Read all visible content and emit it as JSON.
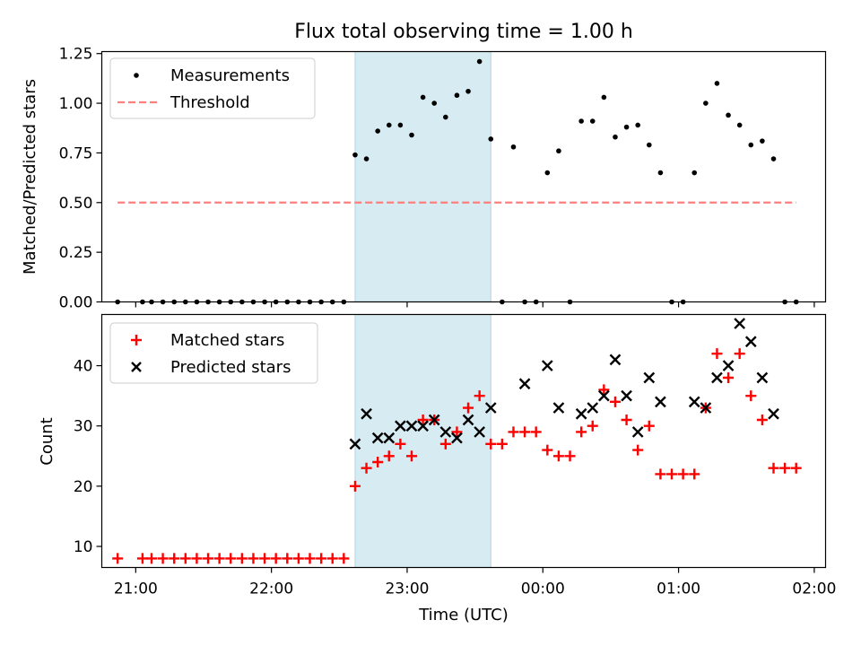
{
  "chart_data": [
    {
      "type": "scatter",
      "title": "Flux total observing time = 1.00 h",
      "xlabel": "",
      "ylabel": "Matched/Predicted stars",
      "xlim": [
        "20:45",
        "02:05"
      ],
      "ylim": [
        0,
        1.26
      ],
      "yticks": [
        "0.00",
        "0.25",
        "0.50",
        "0.75",
        "1.00",
        "1.25"
      ],
      "xticks": [
        "21:00",
        "22:00",
        "23:00",
        "00:00",
        "01:00",
        "02:00"
      ],
      "shaded_span": [
        "22:37",
        "23:37"
      ],
      "legend_position": "top-left",
      "series": [
        {
          "name": "Measurements",
          "marker": "dot",
          "color": "#000000",
          "x": [
            "20:52",
            "21:03",
            "21:07",
            "21:12",
            "21:17",
            "21:22",
            "21:27",
            "21:32",
            "21:37",
            "21:42",
            "21:47",
            "21:52",
            "21:57",
            "22:02",
            "22:07",
            "22:12",
            "22:17",
            "22:22",
            "22:27",
            "22:32",
            "22:37",
            "22:42",
            "22:47",
            "22:52",
            "22:57",
            "23:02",
            "23:07",
            "23:12",
            "23:17",
            "23:22",
            "23:27",
            "23:32",
            "23:37",
            "23:42",
            "23:47",
            "23:52",
            "23:57",
            "00:02",
            "00:07",
            "00:12",
            "00:17",
            "00:22",
            "00:27",
            "00:32",
            "00:37",
            "00:42",
            "00:47",
            "00:52",
            "00:57",
            "01:02",
            "01:07",
            "01:12",
            "01:17",
            "01:22",
            "01:27",
            "01:32",
            "01:37",
            "01:42",
            "01:47",
            "01:52"
          ],
          "y": [
            0,
            0,
            0,
            0,
            0,
            0,
            0,
            0,
            0,
            0,
            0,
            0,
            0,
            0,
            0,
            0,
            0,
            0,
            0,
            0,
            0.74,
            0.72,
            0.86,
            0.89,
            0.89,
            0.84,
            1.03,
            1.0,
            0.93,
            1.04,
            1.06,
            1.21,
            0.82,
            0,
            0.78,
            0,
            0,
            0.65,
            0.76,
            0,
            0.91,
            0.91,
            1.03,
            0.83,
            0.88,
            0.89,
            0.79,
            0.65,
            0,
            0,
            0.65,
            1.0,
            1.1,
            0.94,
            0.89,
            0.79,
            0.81,
            0.72,
            0,
            0
          ]
        },
        {
          "name": "Threshold",
          "marker": "dashed-line",
          "color": "#ff7f7f",
          "x": [
            "20:52",
            "01:52"
          ],
          "y": [
            0.5,
            0.5
          ]
        }
      ]
    },
    {
      "type": "scatter",
      "title": "",
      "xlabel": "Time (UTC)",
      "ylabel": "Count",
      "xlim": [
        "20:45",
        "02:05"
      ],
      "ylim": [
        6.5,
        48.5
      ],
      "yticks": [
        "10",
        "20",
        "30",
        "40"
      ],
      "xticks": [
        "21:00",
        "22:00",
        "23:00",
        "00:00",
        "01:00",
        "02:00"
      ],
      "shaded_span": [
        "22:37",
        "23:37"
      ],
      "legend_position": "top-left",
      "series": [
        {
          "name": "Matched stars",
          "marker": "plus",
          "color": "#ff0000",
          "x": [
            "20:52",
            "21:03",
            "21:07",
            "21:12",
            "21:17",
            "21:22",
            "21:27",
            "21:32",
            "21:37",
            "21:42",
            "21:47",
            "21:52",
            "21:57",
            "22:02",
            "22:07",
            "22:12",
            "22:17",
            "22:22",
            "22:27",
            "22:32",
            "22:37",
            "22:42",
            "22:47",
            "22:52",
            "22:57",
            "23:02",
            "23:07",
            "23:12",
            "23:17",
            "23:22",
            "23:27",
            "23:32",
            "23:37",
            "23:42",
            "23:47",
            "23:52",
            "23:57",
            "00:02",
            "00:07",
            "00:12",
            "00:17",
            "00:22",
            "00:27",
            "00:32",
            "00:37",
            "00:42",
            "00:47",
            "00:52",
            "00:57",
            "01:02",
            "01:07",
            "01:12",
            "01:17",
            "01:22",
            "01:27",
            "01:32",
            "01:37",
            "01:42",
            "01:47",
            "01:52"
          ],
          "y": [
            8,
            8,
            8,
            8,
            8,
            8,
            8,
            8,
            8,
            8,
            8,
            8,
            8,
            8,
            8,
            8,
            8,
            8,
            8,
            8,
            20,
            23,
            24,
            25,
            27,
            25,
            31,
            31,
            27,
            29,
            33,
            35,
            27,
            27,
            29,
            29,
            29,
            26,
            25,
            25,
            29,
            30,
            36,
            34,
            31,
            26,
            30,
            22,
            22,
            22,
            22,
            33,
            42,
            38,
            42,
            35,
            31,
            23,
            23,
            23
          ]
        },
        {
          "name": "Predicted stars",
          "marker": "x",
          "color": "#000000",
          "x": [
            "22:37",
            "22:42",
            "22:47",
            "22:52",
            "22:57",
            "23:02",
            "23:07",
            "23:12",
            "23:17",
            "23:22",
            "23:27",
            "23:32",
            "23:37",
            "23:52",
            "00:02",
            "00:07",
            "00:17",
            "00:22",
            "00:27",
            "00:32",
            "00:37",
            "00:42",
            "00:47",
            "00:52",
            "01:07",
            "01:12",
            "01:17",
            "01:22",
            "01:27",
            "01:32",
            "01:37",
            "01:42"
          ],
          "y": [
            27,
            32,
            28,
            28,
            30,
            30,
            30,
            31,
            29,
            28,
            31,
            29,
            33,
            37,
            40,
            33,
            32,
            33,
            35,
            41,
            35,
            29,
            38,
            34,
            34,
            33,
            38,
            40,
            47,
            44,
            38,
            32
          ]
        }
      ]
    }
  ]
}
